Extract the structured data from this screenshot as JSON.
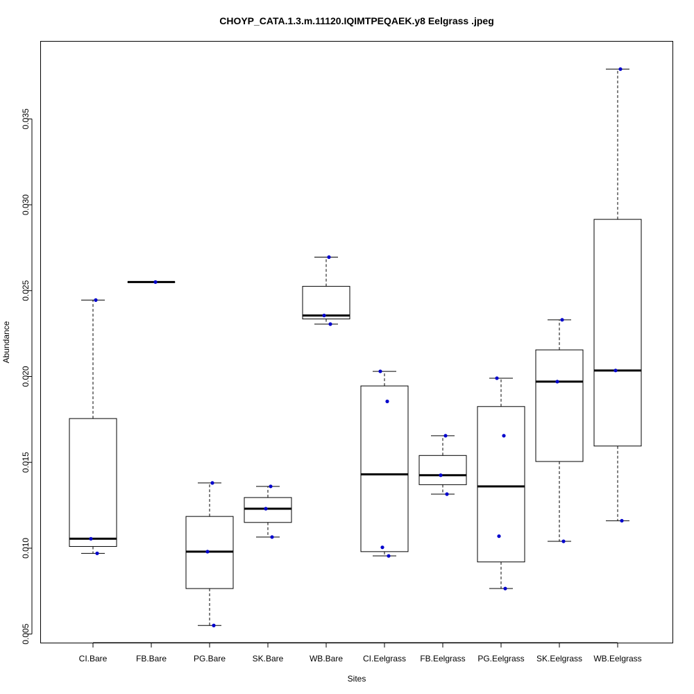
{
  "chart_data": {
    "type": "box",
    "title": "CHOYP_CATA.1.3.m.11120.IQIMTPEQAEK.y8 Eelgrass .jpeg",
    "xlabel": "Sites",
    "ylabel": "Abundance",
    "ylim": [
      0.0045,
      0.0395
    ],
    "yticks": [
      0.005,
      0.01,
      0.015,
      0.02,
      0.025,
      0.03,
      0.035
    ],
    "ytick_labels": [
      "0.005",
      "0.010",
      "0.015",
      "0.020",
      "0.025",
      "0.030",
      "0.035"
    ],
    "grid": false,
    "point_color": "#0000cc",
    "categories": [
      "CI.Bare",
      "FB.Bare",
      "PG.Bare",
      "SK.Bare",
      "WB.Bare",
      "CI.Eelgrass",
      "FB.Eelgrass",
      "PG.Eelgrass",
      "SK.Eelgrass",
      "WB.Eelgrass"
    ],
    "boxes": [
      {
        "whisker_low": 0.0097,
        "q1": 0.0101,
        "median": 0.01055,
        "q3": 0.01755,
        "whisker_high": 0.02445,
        "points": [
          0.0097,
          0.01055,
          0.02445
        ]
      },
      {
        "whisker_low": 0.0255,
        "q1": 0.0255,
        "median": 0.0255,
        "q3": 0.0255,
        "whisker_high": 0.0255,
        "points": [
          0.0255
        ]
      },
      {
        "whisker_low": 0.0055,
        "q1": 0.00765,
        "median": 0.0098,
        "q3": 0.01185,
        "whisker_high": 0.0138,
        "points": [
          0.0055,
          0.0098,
          0.0138
        ]
      },
      {
        "whisker_low": 0.01065,
        "q1": 0.0115,
        "median": 0.0123,
        "q3": 0.01295,
        "whisker_high": 0.0136,
        "points": [
          0.01065,
          0.0123,
          0.0136
        ]
      },
      {
        "whisker_low": 0.02305,
        "q1": 0.02335,
        "median": 0.02355,
        "q3": 0.02525,
        "whisker_high": 0.02695,
        "points": [
          0.02305,
          0.02355,
          0.02695
        ]
      },
      {
        "whisker_low": 0.00955,
        "q1": 0.0098,
        "median": 0.0143,
        "q3": 0.01945,
        "whisker_high": 0.0203,
        "points": [
          0.00955,
          0.01005,
          0.01855,
          0.0203
        ]
      },
      {
        "whisker_low": 0.01315,
        "q1": 0.0137,
        "median": 0.01425,
        "q3": 0.0154,
        "whisker_high": 0.01655,
        "points": [
          0.01315,
          0.01425,
          0.01655
        ]
      },
      {
        "whisker_low": 0.00765,
        "q1": 0.0092,
        "median": 0.0136,
        "q3": 0.01825,
        "whisker_high": 0.0199,
        "points": [
          0.00765,
          0.0107,
          0.01655,
          0.0199
        ]
      },
      {
        "whisker_low": 0.0104,
        "q1": 0.01505,
        "median": 0.0197,
        "q3": 0.02155,
        "whisker_high": 0.0233,
        "points": [
          0.0104,
          0.0197,
          0.0233
        ]
      },
      {
        "whisker_low": 0.0116,
        "q1": 0.01595,
        "median": 0.02035,
        "q3": 0.02915,
        "whisker_high": 0.0379,
        "points": [
          0.0116,
          0.02035,
          0.0379
        ]
      }
    ]
  }
}
